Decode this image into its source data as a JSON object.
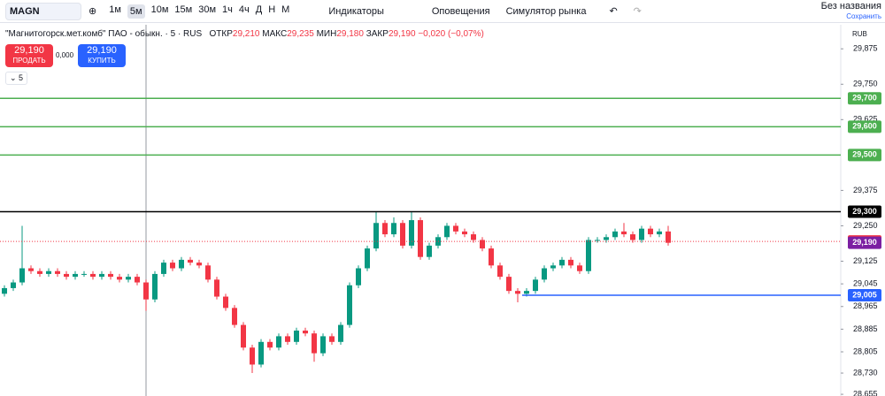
{
  "toolbar": {
    "symbol": "MAGN",
    "intervals": [
      "1м",
      "5м",
      "10м",
      "15м",
      "30м",
      "1ч",
      "4ч",
      "Д",
      "Н",
      "М"
    ],
    "indicators": "Индикаторы",
    "alerts": "Оповещения",
    "simulator": "Симулятор рынка",
    "layout_name": "Без названия",
    "save": "Сохранить"
  },
  "legend": {
    "name": "\"Магнитогорск.мет.комб\" ПАО - обыкн. · 5 · RUS",
    "open_label": "ОТКР",
    "open": "29,210",
    "high_label": "МАКС",
    "high": "29,235",
    "low_label": "МИН",
    "low": "29,180",
    "close_label": "ЗАКР",
    "close": "29,190",
    "change": "−0,020 (−0,07%)"
  },
  "order": {
    "sell_price": "29,190",
    "sell": "ПРОДАТЬ",
    "spread": "0,000",
    "buy_price": "29,190",
    "buy": "КУПИТЬ",
    "collapse": "5"
  },
  "currency": "RUB",
  "chart_data": {
    "type": "candlestick",
    "up_color": "#089981",
    "down_color": "#f23645",
    "ylim": [
      28.649,
      29.96
    ],
    "yticks": [
      {
        "value": 29.875,
        "label": "29,875"
      },
      {
        "value": 29.75,
        "label": "29,750"
      },
      {
        "value": 29.625,
        "label": "29,625"
      },
      {
        "value": 29.375,
        "label": "29,375"
      },
      {
        "value": 29.25,
        "label": "29,250"
      },
      {
        "value": 29.125,
        "label": "29,125"
      },
      {
        "value": 29.045,
        "label": "29,045"
      },
      {
        "value": 28.965,
        "label": "28,965"
      },
      {
        "value": 28.885,
        "label": "28,885"
      },
      {
        "value": 28.805,
        "label": "28,805"
      },
      {
        "value": 28.73,
        "label": "28,730"
      },
      {
        "value": 28.655,
        "label": "28,655"
      }
    ],
    "levels": [
      {
        "value": 29.7,
        "label": "29,700",
        "color": "#4caf50"
      },
      {
        "value": 29.6,
        "label": "29,600",
        "color": "#4caf50"
      },
      {
        "value": 29.5,
        "label": "29,500",
        "color": "#4caf50"
      },
      {
        "value": 29.3,
        "label": "29,300",
        "color": "#000000"
      },
      {
        "value": 29.005,
        "label": "29,005",
        "color": "#2962ff"
      },
      {
        "value": 29.195,
        "label": "29,195",
        "color": "#f23645"
      },
      {
        "value": 29.19,
        "label": "29,190",
        "color": "#7b1fa2"
      }
    ],
    "open": [
      29.01,
      29.03,
      29.05,
      29.1,
      29.09,
      29.08,
      29.09,
      29.08,
      29.07,
      29.08,
      29.08,
      29.07,
      29.08,
      29.07,
      29.06,
      29.07,
      29.05,
      28.99,
      29.08,
      29.12,
      29.1,
      29.13,
      29.12,
      29.11,
      29.06,
      29.0,
      28.96,
      28.9,
      28.82,
      28.76,
      28.84,
      28.82,
      28.86,
      28.84,
      28.88,
      28.87,
      28.8,
      28.86,
      28.84,
      28.9,
      29.04,
      29.1,
      29.17,
      29.26,
      29.22,
      29.26,
      29.18,
      29.27,
      29.14,
      29.18,
      29.21,
      29.25,
      29.23,
      29.22,
      29.2,
      29.17,
      29.11,
      29.07,
      29.02,
      29.01,
      29.02,
      29.06,
      29.1,
      29.11,
      29.13,
      29.11,
      29.09,
      29.2,
      29.2,
      29.21,
      29.23,
      29.22,
      29.2,
      29.24,
      29.22,
      29.23
    ],
    "high": [
      29.04,
      29.06,
      29.25,
      29.11,
      29.1,
      29.1,
      29.1,
      29.09,
      29.09,
      29.09,
      29.09,
      29.09,
      29.09,
      29.08,
      29.08,
      29.08,
      29.06,
      29.09,
      29.13,
      29.13,
      29.14,
      29.14,
      29.13,
      29.12,
      29.07,
      29.01,
      28.97,
      28.91,
      28.83,
      28.85,
      28.85,
      28.87,
      28.87,
      28.89,
      28.89,
      28.88,
      28.87,
      28.87,
      28.91,
      29.05,
      29.11,
      29.18,
      29.3,
      29.27,
      29.28,
      29.27,
      29.3,
      29.28,
      29.19,
      29.22,
      29.26,
      29.26,
      29.24,
      29.23,
      29.21,
      29.18,
      29.12,
      29.08,
      29.03,
      29.03,
      29.07,
      29.11,
      29.12,
      29.14,
      29.14,
      29.12,
      29.21,
      29.21,
      29.22,
      29.24,
      29.26,
      29.23,
      29.25,
      29.25,
      29.24,
      29.25
    ],
    "low": [
      29.0,
      29.02,
      29.04,
      29.08,
      29.07,
      29.07,
      29.07,
      29.06,
      29.06,
      29.07,
      29.06,
      29.06,
      29.06,
      29.05,
      29.05,
      29.04,
      28.95,
      28.98,
      29.07,
      29.09,
      29.09,
      29.11,
      29.1,
      29.05,
      28.99,
      28.95,
      28.89,
      28.81,
      28.73,
      28.75,
      28.81,
      28.81,
      28.83,
      28.83,
      28.86,
      28.77,
      28.79,
      28.83,
      28.83,
      28.89,
      29.03,
      29.09,
      29.16,
      29.21,
      29.21,
      29.17,
      29.17,
      29.13,
      29.13,
      29.17,
      29.2,
      29.22,
      29.21,
      29.19,
      29.16,
      29.1,
      29.06,
      29.01,
      28.98,
      29.0,
      29.01,
      29.05,
      29.09,
      29.1,
      29.1,
      29.08,
      29.08,
      29.19,
      29.19,
      29.2,
      29.21,
      29.19,
      29.19,
      29.21,
      29.21,
      29.18
    ],
    "close": [
      29.03,
      29.05,
      29.1,
      29.09,
      29.08,
      29.09,
      29.08,
      29.07,
      29.08,
      29.08,
      29.07,
      29.08,
      29.07,
      29.06,
      29.07,
      29.05,
      28.99,
      29.08,
      29.12,
      29.1,
      29.13,
      29.12,
      29.11,
      29.06,
      29.0,
      28.96,
      28.9,
      28.82,
      28.76,
      28.84,
      28.82,
      28.86,
      28.84,
      28.88,
      28.87,
      28.8,
      28.86,
      28.84,
      28.9,
      29.04,
      29.1,
      29.17,
      29.26,
      29.22,
      29.26,
      29.18,
      29.27,
      29.14,
      29.18,
      29.21,
      29.25,
      29.23,
      29.22,
      29.2,
      29.17,
      29.11,
      29.07,
      29.02,
      29.01,
      29.02,
      29.06,
      29.1,
      29.11,
      29.13,
      29.11,
      29.09,
      29.2,
      29.2,
      29.21,
      29.23,
      29.22,
      29.2,
      29.24,
      29.22,
      29.23,
      29.19
    ]
  }
}
